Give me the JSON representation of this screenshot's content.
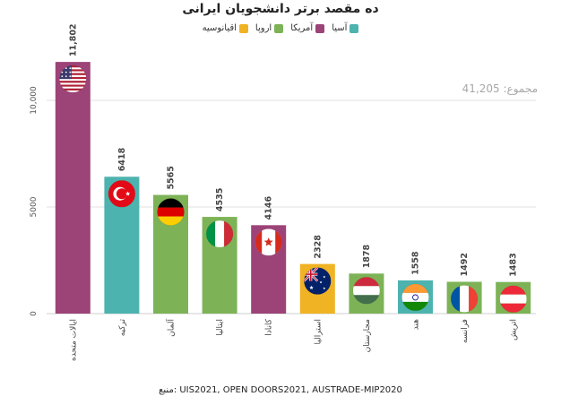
{
  "chart_data": {
    "type": "bar",
    "title": "ده مقصد برتر دانشجویان ایرانی",
    "categories": [
      "ایالات متحده",
      "ترکیه",
      "آلمان",
      "ایتالیا",
      "کانادا",
      "استرالیا",
      "مجارستان",
      "هند",
      "فرانسه",
      "اتریش"
    ],
    "values": [
      11802,
      6418,
      5565,
      4535,
      4146,
      2328,
      1878,
      1558,
      1492,
      1483
    ],
    "value_labels": [
      "11,802",
      "6418",
      "5565",
      "4535",
      "4146",
      "2328",
      "1878",
      "1558",
      "1492",
      "1483"
    ],
    "regions": [
      "america",
      "asia",
      "europe",
      "europe",
      "america",
      "oceania",
      "europe",
      "asia",
      "europe",
      "europe"
    ],
    "flags": [
      "us-flag",
      "tr-flag",
      "de-flag",
      "it-flag",
      "ca-flag",
      "au-flag",
      "hu-flag",
      "in-flag",
      "fr-flag",
      "at-flag"
    ],
    "ylim": [
      0,
      12000
    ],
    "yticks": [
      0,
      5000,
      10000
    ],
    "ytick_labels": [
      "0",
      "5000",
      "10,000"
    ],
    "grid": true,
    "legend": [
      {
        "key": "asia",
        "label": "آسیا",
        "color": "#4db3ae"
      },
      {
        "key": "america",
        "label": "آمریکا",
        "color": "#9c4378"
      },
      {
        "key": "europe",
        "label": "اروپا",
        "color": "#7db356"
      },
      {
        "key": "oceania",
        "label": "اقیانوسیه",
        "color": "#f0b323"
      }
    ],
    "legend_position": "top-center"
  },
  "total_label": "مجموع: 41,205",
  "source_label": "منبع: UIS2021, OPEN DOORS2021, AUSTRADE-MIP2020"
}
